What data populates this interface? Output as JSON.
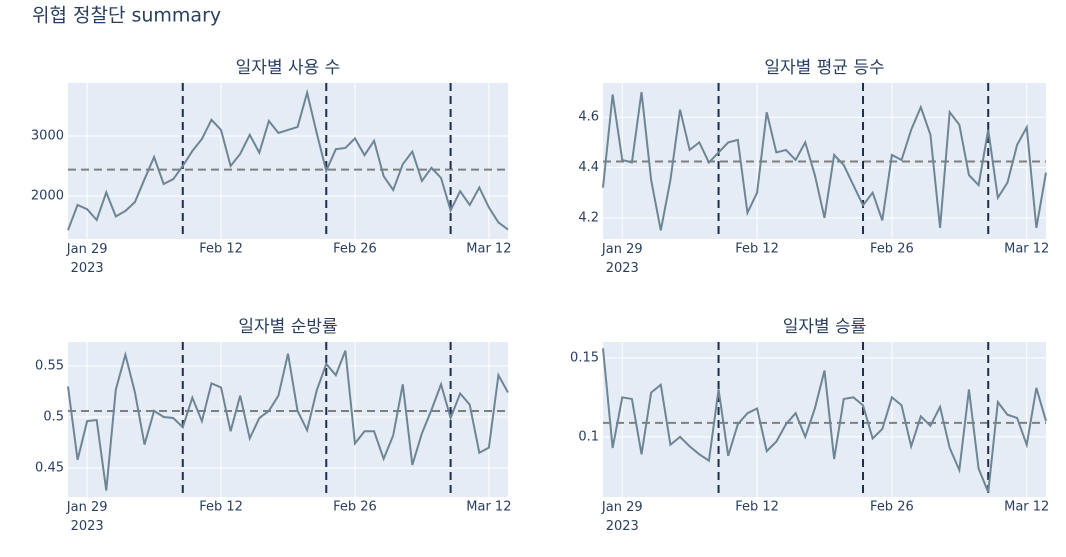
{
  "title": "위협 정찰단 summary",
  "chart_data": [
    {
      "type": "line",
      "title": "일자별 사용 수",
      "x": [
        "2023-01-27",
        "2023-01-28",
        "2023-01-29",
        "2023-01-30",
        "2023-01-31",
        "2023-02-01",
        "2023-02-02",
        "2023-02-03",
        "2023-02-04",
        "2023-02-05",
        "2023-02-06",
        "2023-02-07",
        "2023-02-08",
        "2023-02-09",
        "2023-02-10",
        "2023-02-11",
        "2023-02-12",
        "2023-02-13",
        "2023-02-14",
        "2023-02-15",
        "2023-02-16",
        "2023-02-17",
        "2023-02-18",
        "2023-02-19",
        "2023-02-20",
        "2023-02-21",
        "2023-02-22",
        "2023-02-23",
        "2023-02-24",
        "2023-02-25",
        "2023-02-26",
        "2023-02-27",
        "2023-02-28",
        "2023-03-01",
        "2023-03-02",
        "2023-03-03",
        "2023-03-04",
        "2023-03-05",
        "2023-03-06",
        "2023-03-07",
        "2023-03-08",
        "2023-03-09",
        "2023-03-10",
        "2023-03-11",
        "2023-03-12",
        "2023-03-13",
        "2023-03-14"
      ],
      "values": [
        1430,
        1850,
        1780,
        1600,
        2060,
        1660,
        1750,
        1900,
        2280,
        2650,
        2200,
        2280,
        2500,
        2750,
        2950,
        3270,
        3100,
        2500,
        2700,
        3020,
        2720,
        3250,
        3050,
        3100,
        3150,
        3720,
        3050,
        2420,
        2780,
        2800,
        2960,
        2680,
        2920,
        2330,
        2100,
        2530,
        2740,
        2250,
        2470,
        2300,
        1760,
        2080,
        1850,
        2140,
        1810,
        1560,
        1440
      ],
      "color": "#6d8595",
      "xlim": [
        "2023-01-27",
        "2023-03-14"
      ],
      "xticks": [
        {
          "value": "2023-01-29",
          "label": "Jan 29\n2023"
        },
        {
          "value": "2023-02-12",
          "label": "Feb 12"
        },
        {
          "value": "2023-02-26",
          "label": "Feb 26"
        },
        {
          "value": "2023-03-12",
          "label": "Mar 12"
        }
      ],
      "ylim": [
        1283,
        3883
      ],
      "yticks": [
        2000,
        3000
      ],
      "grid": true,
      "hline": 2440,
      "hline_color": "#7f7f7f",
      "vlines": [
        "2023-02-08",
        "2023-02-23",
        "2023-03-08"
      ],
      "vline_color": "#1f2d4d"
    },
    {
      "type": "line",
      "title": "일자별 평균 등수",
      "x": [
        "2023-01-27",
        "2023-01-28",
        "2023-01-29",
        "2023-01-30",
        "2023-01-31",
        "2023-02-01",
        "2023-02-02",
        "2023-02-03",
        "2023-02-04",
        "2023-02-05",
        "2023-02-06",
        "2023-02-07",
        "2023-02-08",
        "2023-02-09",
        "2023-02-10",
        "2023-02-11",
        "2023-02-12",
        "2023-02-13",
        "2023-02-14",
        "2023-02-15",
        "2023-02-16",
        "2023-02-17",
        "2023-02-18",
        "2023-02-19",
        "2023-02-20",
        "2023-02-21",
        "2023-02-22",
        "2023-02-23",
        "2023-02-24",
        "2023-02-25",
        "2023-02-26",
        "2023-02-27",
        "2023-02-28",
        "2023-03-01",
        "2023-03-02",
        "2023-03-03",
        "2023-03-04",
        "2023-03-05",
        "2023-03-06",
        "2023-03-07",
        "2023-03-08",
        "2023-03-09",
        "2023-03-10",
        "2023-03-11",
        "2023-03-12",
        "2023-03-13",
        "2023-03-14"
      ],
      "values": [
        4.32,
        4.69,
        4.43,
        4.42,
        4.7,
        4.35,
        4.15,
        4.35,
        4.63,
        4.47,
        4.5,
        4.42,
        4.46,
        4.5,
        4.51,
        4.22,
        4.3,
        4.62,
        4.46,
        4.47,
        4.43,
        4.5,
        4.37,
        4.2,
        4.45,
        4.41,
        4.33,
        4.25,
        4.3,
        4.19,
        4.45,
        4.43,
        4.55,
        4.64,
        4.53,
        4.16,
        4.62,
        4.57,
        4.37,
        4.33,
        4.55,
        4.28,
        4.34,
        4.49,
        4.56,
        4.16,
        4.38
      ],
      "color": "#6d8595",
      "xlim": [
        "2023-01-27",
        "2023-03-14"
      ],
      "xticks": [
        {
          "value": "2023-01-29",
          "label": "Jan 29\n2023"
        },
        {
          "value": "2023-02-12",
          "label": "Feb 12"
        },
        {
          "value": "2023-02-26",
          "label": "Feb 26"
        },
        {
          "value": "2023-03-12",
          "label": "Mar 12"
        }
      ],
      "ylim": [
        4.116,
        4.736
      ],
      "yticks": [
        4.2,
        4.4,
        4.6
      ],
      "grid": true,
      "hline": 4.424,
      "hline_color": "#7f7f7f",
      "vlines": [
        "2023-02-08",
        "2023-02-23",
        "2023-03-08"
      ],
      "vline_color": "#1f2d4d"
    },
    {
      "type": "line",
      "title": "일자별 순방률",
      "x": [
        "2023-01-27",
        "2023-01-28",
        "2023-01-29",
        "2023-01-30",
        "2023-01-31",
        "2023-02-01",
        "2023-02-02",
        "2023-02-03",
        "2023-02-04",
        "2023-02-05",
        "2023-02-06",
        "2023-02-07",
        "2023-02-08",
        "2023-02-09",
        "2023-02-10",
        "2023-02-11",
        "2023-02-12",
        "2023-02-13",
        "2023-02-14",
        "2023-02-15",
        "2023-02-16",
        "2023-02-17",
        "2023-02-18",
        "2023-02-19",
        "2023-02-20",
        "2023-02-21",
        "2023-02-22",
        "2023-02-23",
        "2023-02-24",
        "2023-02-25",
        "2023-02-26",
        "2023-02-27",
        "2023-02-28",
        "2023-03-01",
        "2023-03-02",
        "2023-03-03",
        "2023-03-04",
        "2023-03-05",
        "2023-03-06",
        "2023-03-07",
        "2023-03-08",
        "2023-03-09",
        "2023-03-10",
        "2023-03-11",
        "2023-03-12",
        "2023-03-13",
        "2023-03-14"
      ],
      "values": [
        0.53,
        0.458,
        0.496,
        0.497,
        0.428,
        0.527,
        0.561,
        0.524,
        0.473,
        0.506,
        0.5,
        0.499,
        0.49,
        0.519,
        0.496,
        0.533,
        0.529,
        0.486,
        0.521,
        0.479,
        0.499,
        0.506,
        0.521,
        0.562,
        0.506,
        0.487,
        0.526,
        0.552,
        0.541,
        0.565,
        0.474,
        0.486,
        0.486,
        0.459,
        0.482,
        0.532,
        0.453,
        0.484,
        0.507,
        0.532,
        0.499,
        0.523,
        0.512,
        0.465,
        0.47,
        0.541,
        0.524
      ],
      "color": "#6d8595",
      "xlim": [
        "2023-01-27",
        "2023-03-14"
      ],
      "xticks": [
        {
          "value": "2023-01-29",
          "label": "Jan 29\n2023"
        },
        {
          "value": "2023-02-12",
          "label": "Feb 12"
        },
        {
          "value": "2023-02-26",
          "label": "Feb 26"
        },
        {
          "value": "2023-03-12",
          "label": "Mar 12"
        }
      ],
      "ylim": [
        0.4216,
        0.5735
      ],
      "yticks": [
        0.45,
        0.5,
        0.55
      ],
      "grid": true,
      "hline": 0.5059,
      "hline_color": "#7f7f7f",
      "vlines": [
        "2023-02-08",
        "2023-02-23",
        "2023-03-08"
      ],
      "vline_color": "#1f2d4d"
    },
    {
      "type": "line",
      "title": "일자별 승률",
      "x": [
        "2023-01-27",
        "2023-01-28",
        "2023-01-29",
        "2023-01-30",
        "2023-01-31",
        "2023-02-01",
        "2023-02-02",
        "2023-02-03",
        "2023-02-04",
        "2023-02-05",
        "2023-02-06",
        "2023-02-07",
        "2023-02-08",
        "2023-02-09",
        "2023-02-10",
        "2023-02-11",
        "2023-02-12",
        "2023-02-13",
        "2023-02-14",
        "2023-02-15",
        "2023-02-16",
        "2023-02-17",
        "2023-02-18",
        "2023-02-19",
        "2023-02-20",
        "2023-02-21",
        "2023-02-22",
        "2023-02-23",
        "2023-02-24",
        "2023-02-25",
        "2023-02-26",
        "2023-02-27",
        "2023-02-28",
        "2023-03-01",
        "2023-03-02",
        "2023-03-03",
        "2023-03-04",
        "2023-03-05",
        "2023-03-06",
        "2023-03-07",
        "2023-03-08",
        "2023-03-09",
        "2023-03-10",
        "2023-03-11",
        "2023-03-12",
        "2023-03-13",
        "2023-03-14"
      ],
      "values": [
        0.156,
        0.093,
        0.125,
        0.124,
        0.089,
        0.128,
        0.133,
        0.095,
        0.1,
        0.094,
        0.089,
        0.085,
        0.13,
        0.088,
        0.108,
        0.115,
        0.118,
        0.091,
        0.097,
        0.108,
        0.115,
        0.1,
        0.118,
        0.142,
        0.086,
        0.124,
        0.125,
        0.12,
        0.099,
        0.105,
        0.125,
        0.12,
        0.094,
        0.113,
        0.107,
        0.119,
        0.093,
        0.079,
        0.13,
        0.08,
        0.065,
        0.122,
        0.114,
        0.112,
        0.095,
        0.131,
        0.11
      ],
      "color": "#6d8595",
      "xlim": [
        "2023-01-27",
        "2023-03-14"
      ],
      "xticks": [
        {
          "value": "2023-01-29",
          "label": "Jan 29\n2023"
        },
        {
          "value": "2023-02-12",
          "label": "Feb 12"
        },
        {
          "value": "2023-02-26",
          "label": "Feb 26"
        },
        {
          "value": "2023-03-12",
          "label": "Mar 12"
        }
      ],
      "ylim": [
        0.062,
        0.16
      ],
      "yticks": [
        0.1,
        0.15
      ],
      "grid": true,
      "hline": 0.1089,
      "hline_color": "#7f7f7f",
      "vlines": [
        "2023-02-08",
        "2023-02-23",
        "2023-03-08"
      ],
      "vline_color": "#1f2d4d"
    }
  ]
}
